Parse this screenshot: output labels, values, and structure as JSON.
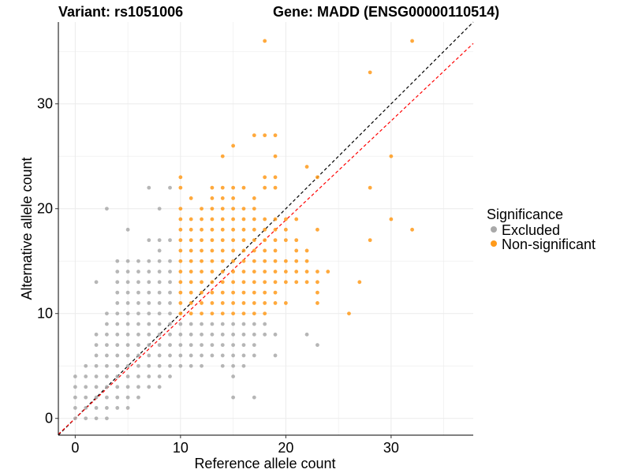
{
  "chart_data": {
    "type": "scatter",
    "title_left": "Variant: rs1051006",
    "title_right": "Gene: MADD (ENSG00000110514)",
    "xlabel": "Reference allele count",
    "ylabel": "Alternative allele count",
    "xlim": [
      -1.6,
      37.8
    ],
    "ylim": [
      -1.6,
      37.8
    ],
    "x_ticks": [
      0,
      10,
      20,
      30
    ],
    "y_ticks": [
      0,
      10,
      20,
      30
    ],
    "grid": true,
    "legend": {
      "title": "Significance",
      "position": "right",
      "entries": [
        {
          "label": "Excluded",
          "color": "#a9a9a9"
        },
        {
          "label": "Non-significant",
          "color": "#ff9a1a"
        }
      ]
    },
    "reference_lines": [
      {
        "type": "identity",
        "color": "#000000",
        "style": "dashed",
        "slope": 1,
        "intercept": 0
      },
      {
        "type": "fit",
        "color": "#ff0000",
        "style": "dashed",
        "slope": 0.946,
        "intercept": 0
      }
    ],
    "series": [
      {
        "name": "Excluded",
        "color": "#a9a9a9",
        "points": [
          [
            0,
            0
          ],
          [
            0,
            1
          ],
          [
            0,
            2
          ],
          [
            0,
            3
          ],
          [
            0,
            4
          ],
          [
            1,
            0
          ],
          [
            1,
            1
          ],
          [
            1,
            2
          ],
          [
            1,
            3
          ],
          [
            1,
            4
          ],
          [
            1,
            5
          ],
          [
            2,
            0
          ],
          [
            2,
            1
          ],
          [
            2,
            2
          ],
          [
            2,
            3
          ],
          [
            2,
            4
          ],
          [
            2,
            5
          ],
          [
            2,
            6
          ],
          [
            2,
            7
          ],
          [
            2,
            8
          ],
          [
            2,
            13
          ],
          [
            3,
            0
          ],
          [
            3,
            1
          ],
          [
            3,
            2
          ],
          [
            3,
            3
          ],
          [
            3,
            4
          ],
          [
            3,
            5
          ],
          [
            3,
            6
          ],
          [
            3,
            7
          ],
          [
            3,
            8
          ],
          [
            3,
            9
          ],
          [
            3,
            10
          ],
          [
            3,
            20
          ],
          [
            4,
            1
          ],
          [
            4,
            2
          ],
          [
            4,
            3
          ],
          [
            4,
            4
          ],
          [
            4,
            5
          ],
          [
            4,
            6
          ],
          [
            4,
            7
          ],
          [
            4,
            8
          ],
          [
            4,
            9
          ],
          [
            4,
            10
          ],
          [
            4,
            11
          ],
          [
            4,
            12
          ],
          [
            4,
            13
          ],
          [
            4,
            14
          ],
          [
            4,
            15
          ],
          [
            5,
            1
          ],
          [
            5,
            2
          ],
          [
            5,
            3
          ],
          [
            5,
            4
          ],
          [
            5,
            5
          ],
          [
            5,
            6
          ],
          [
            5,
            7
          ],
          [
            5,
            8
          ],
          [
            5,
            9
          ],
          [
            5,
            10
          ],
          [
            5,
            11
          ],
          [
            5,
            12
          ],
          [
            5,
            13
          ],
          [
            5,
            14
          ],
          [
            5,
            15
          ],
          [
            5,
            18
          ],
          [
            6,
            2
          ],
          [
            6,
            3
          ],
          [
            6,
            4
          ],
          [
            6,
            5
          ],
          [
            6,
            6
          ],
          [
            6,
            7
          ],
          [
            6,
            8
          ],
          [
            6,
            9
          ],
          [
            6,
            10
          ],
          [
            6,
            11
          ],
          [
            6,
            12
          ],
          [
            6,
            13
          ],
          [
            6,
            14
          ],
          [
            6,
            15
          ],
          [
            7,
            3
          ],
          [
            7,
            4
          ],
          [
            7,
            5
          ],
          [
            7,
            6
          ],
          [
            7,
            7
          ],
          [
            7,
            8
          ],
          [
            7,
            9
          ],
          [
            7,
            10
          ],
          [
            7,
            11
          ],
          [
            7,
            12
          ],
          [
            7,
            13
          ],
          [
            7,
            14
          ],
          [
            7,
            15
          ],
          [
            7,
            17
          ],
          [
            7,
            22
          ],
          [
            8,
            3
          ],
          [
            8,
            4
          ],
          [
            8,
            5
          ],
          [
            8,
            6
          ],
          [
            8,
            7
          ],
          [
            8,
            8
          ],
          [
            8,
            9
          ],
          [
            8,
            10
          ],
          [
            8,
            11
          ],
          [
            8,
            12
          ],
          [
            8,
            13
          ],
          [
            8,
            14
          ],
          [
            8,
            15
          ],
          [
            8,
            16
          ],
          [
            8,
            17
          ],
          [
            8,
            20
          ],
          [
            9,
            4
          ],
          [
            9,
            5
          ],
          [
            9,
            6
          ],
          [
            9,
            7
          ],
          [
            9,
            8
          ],
          [
            9,
            9
          ],
          [
            9,
            10
          ],
          [
            9,
            11
          ],
          [
            9,
            12
          ],
          [
            9,
            13
          ],
          [
            9,
            14
          ],
          [
            9,
            15
          ],
          [
            9,
            17
          ],
          [
            9,
            22
          ],
          [
            10,
            5
          ],
          [
            10,
            6
          ],
          [
            10,
            7
          ],
          [
            10,
            8
          ],
          [
            10,
            9
          ],
          [
            11,
            5
          ],
          [
            11,
            6
          ],
          [
            11,
            7
          ],
          [
            11,
            8
          ],
          [
            11,
            9
          ],
          [
            12,
            5
          ],
          [
            12,
            6
          ],
          [
            12,
            7
          ],
          [
            12,
            8
          ],
          [
            12,
            9
          ],
          [
            13,
            6
          ],
          [
            13,
            7
          ],
          [
            13,
            8
          ],
          [
            13,
            9
          ],
          [
            14,
            5
          ],
          [
            14,
            6
          ],
          [
            14,
            7
          ],
          [
            14,
            8
          ],
          [
            14,
            9
          ],
          [
            15,
            2
          ],
          [
            15,
            4
          ],
          [
            15,
            5
          ],
          [
            15,
            6
          ],
          [
            15,
            7
          ],
          [
            15,
            8
          ],
          [
            15,
            9
          ],
          [
            16,
            5
          ],
          [
            16,
            6
          ],
          [
            16,
            7
          ],
          [
            16,
            8
          ],
          [
            16,
            9
          ],
          [
            17,
            2
          ],
          [
            17,
            6
          ],
          [
            17,
            7
          ],
          [
            17,
            8
          ],
          [
            17,
            9
          ],
          [
            18,
            8
          ],
          [
            18,
            9
          ],
          [
            19,
            6
          ],
          [
            19,
            8
          ],
          [
            22,
            8
          ],
          [
            23,
            7
          ]
        ]
      },
      {
        "name": "Non-significant",
        "color": "#ff9a1a",
        "points": [
          [
            10,
            10
          ],
          [
            10,
            11
          ],
          [
            10,
            12
          ],
          [
            10,
            13
          ],
          [
            10,
            14
          ],
          [
            10,
            15
          ],
          [
            10,
            16
          ],
          [
            10,
            17
          ],
          [
            10,
            18
          ],
          [
            10,
            19
          ],
          [
            10,
            20
          ],
          [
            10,
            22
          ],
          [
            10,
            23
          ],
          [
            11,
            10
          ],
          [
            11,
            11
          ],
          [
            11,
            12
          ],
          [
            11,
            13
          ],
          [
            11,
            14
          ],
          [
            11,
            15
          ],
          [
            11,
            16
          ],
          [
            11,
            17
          ],
          [
            11,
            18
          ],
          [
            11,
            19
          ],
          [
            11,
            21
          ],
          [
            12,
            10
          ],
          [
            12,
            11
          ],
          [
            12,
            12
          ],
          [
            12,
            13
          ],
          [
            12,
            14
          ],
          [
            12,
            15
          ],
          [
            12,
            16
          ],
          [
            12,
            17
          ],
          [
            12,
            18
          ],
          [
            12,
            19
          ],
          [
            12,
            20
          ],
          [
            13,
            10
          ],
          [
            13,
            11
          ],
          [
            13,
            12
          ],
          [
            13,
            13
          ],
          [
            13,
            14
          ],
          [
            13,
            15
          ],
          [
            13,
            16
          ],
          [
            13,
            17
          ],
          [
            13,
            18
          ],
          [
            13,
            19
          ],
          [
            13,
            20
          ],
          [
            13,
            21
          ],
          [
            13,
            22
          ],
          [
            14,
            10
          ],
          [
            14,
            11
          ],
          [
            14,
            12
          ],
          [
            14,
            13
          ],
          [
            14,
            14
          ],
          [
            14,
            15
          ],
          [
            14,
            16
          ],
          [
            14,
            17
          ],
          [
            14,
            18
          ],
          [
            14,
            19
          ],
          [
            14,
            20
          ],
          [
            14,
            21
          ],
          [
            14,
            22
          ],
          [
            14,
            25
          ],
          [
            15,
            10
          ],
          [
            15,
            11
          ],
          [
            15,
            12
          ],
          [
            15,
            13
          ],
          [
            15,
            14
          ],
          [
            15,
            15
          ],
          [
            15,
            16
          ],
          [
            15,
            17
          ],
          [
            15,
            18
          ],
          [
            15,
            19
          ],
          [
            15,
            20
          ],
          [
            15,
            21
          ],
          [
            15,
            22
          ],
          [
            15,
            26
          ],
          [
            16,
            10
          ],
          [
            16,
            11
          ],
          [
            16,
            12
          ],
          [
            16,
            13
          ],
          [
            16,
            14
          ],
          [
            16,
            15
          ],
          [
            16,
            16
          ],
          [
            16,
            17
          ],
          [
            16,
            18
          ],
          [
            16,
            19
          ],
          [
            16,
            20
          ],
          [
            16,
            22
          ],
          [
            17,
            10
          ],
          [
            17,
            11
          ],
          [
            17,
            12
          ],
          [
            17,
            13
          ],
          [
            17,
            14
          ],
          [
            17,
            15
          ],
          [
            17,
            16
          ],
          [
            17,
            17
          ],
          [
            17,
            18
          ],
          [
            17,
            19
          ],
          [
            17,
            20
          ],
          [
            17,
            21
          ],
          [
            17,
            27
          ],
          [
            18,
            10
          ],
          [
            18,
            11
          ],
          [
            18,
            12
          ],
          [
            18,
            13
          ],
          [
            18,
            14
          ],
          [
            18,
            15
          ],
          [
            18,
            16
          ],
          [
            18,
            17
          ],
          [
            18,
            18
          ],
          [
            18,
            19
          ],
          [
            18,
            22
          ],
          [
            18,
            23
          ],
          [
            18,
            27
          ],
          [
            18,
            36
          ],
          [
            19,
            11
          ],
          [
            19,
            12
          ],
          [
            19,
            13
          ],
          [
            19,
            14
          ],
          [
            19,
            15
          ],
          [
            19,
            16
          ],
          [
            19,
            17
          ],
          [
            19,
            18
          ],
          [
            19,
            19
          ],
          [
            19,
            22
          ],
          [
            19,
            23
          ],
          [
            19,
            25
          ],
          [
            19,
            27
          ],
          [
            20,
            11
          ],
          [
            20,
            13
          ],
          [
            20,
            14
          ],
          [
            20,
            15
          ],
          [
            20,
            17
          ],
          [
            20,
            18
          ],
          [
            20,
            19
          ],
          [
            21,
            13
          ],
          [
            21,
            14
          ],
          [
            21,
            15
          ],
          [
            21,
            16
          ],
          [
            21,
            17
          ],
          [
            21,
            19
          ],
          [
            22,
            13
          ],
          [
            22,
            14
          ],
          [
            22,
            15
          ],
          [
            22,
            16
          ],
          [
            22,
            24
          ],
          [
            23,
            11
          ],
          [
            23,
            12
          ],
          [
            23,
            13
          ],
          [
            23,
            14
          ],
          [
            23,
            18
          ],
          [
            23,
            23
          ],
          [
            24,
            14
          ],
          [
            26,
            10
          ],
          [
            27,
            13
          ],
          [
            28,
            17
          ],
          [
            28,
            22
          ],
          [
            28,
            33
          ],
          [
            30,
            19
          ],
          [
            30,
            25
          ],
          [
            32,
            18
          ],
          [
            32,
            36
          ]
        ]
      }
    ]
  }
}
